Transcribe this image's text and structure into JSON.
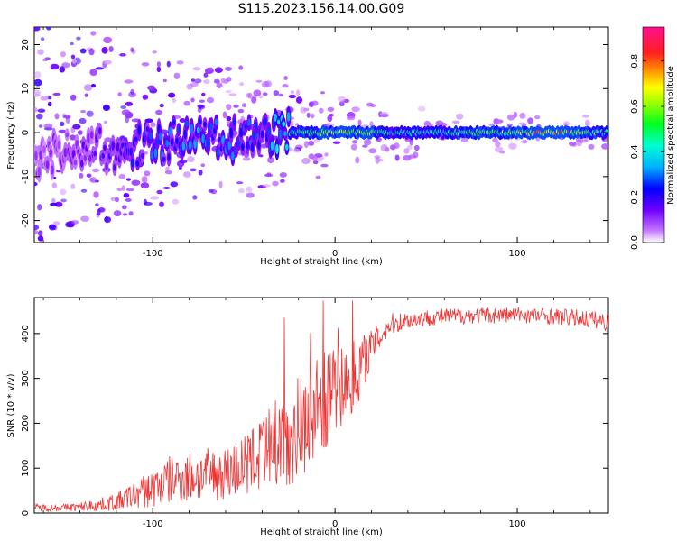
{
  "chart_data": [
    {
      "type": "heatmap",
      "title": "S115.2023.156.14.00.G09",
      "xlabel": "Height of straight line (km)",
      "ylabel": "Frequency (Hz)",
      "xlim": [
        -165,
        150
      ],
      "ylim": [
        -25,
        24
      ],
      "xticks": [
        -100,
        0,
        100
      ],
      "yticks": [
        -20,
        -10,
        0,
        10,
        20
      ],
      "colorbar": {
        "label": "Normalized spectral amplitude",
        "range": [
          0,
          0.95
        ],
        "ticks": [
          0.0,
          0.2,
          0.4,
          0.6,
          0.8
        ],
        "colors": [
          "#ffffff",
          "#a030ff",
          "#0000ff",
          "#00e0ff",
          "#00ff40",
          "#ffff00",
          "#ff2020",
          "#ff1090"
        ]
      },
      "ridge": {
        "x": [
          -165,
          -140,
          -120,
          -100,
          -80,
          -60,
          -40,
          -25,
          -10,
          0,
          10,
          30,
          60,
          90,
          120,
          150
        ],
        "frequency": [
          -6,
          -3,
          -4,
          -3,
          0,
          -2,
          0,
          0,
          0,
          0,
          0,
          0,
          0,
          0,
          0,
          0
        ],
        "amplitude": [
          0.1,
          0.15,
          0.2,
          0.28,
          0.33,
          0.3,
          0.3,
          0.45,
          0.6,
          0.62,
          0.7,
          0.45,
          0.5,
          0.62,
          0.88,
          0.52
        ]
      }
    },
    {
      "type": "line",
      "title": "",
      "xlabel": "Height of straight line (km)",
      "ylabel": "SNR (10 * v/v)",
      "xlim": [
        -165,
        150
      ],
      "ylim": [
        0,
        480
      ],
      "xticks": [
        -100,
        0,
        100
      ],
      "yticks": [
        0,
        100,
        200,
        300,
        400
      ],
      "series": [
        {
          "color": "#ee3333",
          "x": [
            -165,
            -150,
            -140,
            -130,
            -120,
            -110,
            -100,
            -90,
            -80,
            -70,
            -60,
            -50,
            -40,
            -30,
            -20,
            -10,
            0,
            10,
            20,
            30,
            40,
            60,
            80,
            100,
            120,
            140,
            150
          ],
          "y": [
            12,
            12,
            14,
            18,
            25,
            40,
            55,
            75,
            80,
            85,
            90,
            105,
            120,
            160,
            190,
            235,
            270,
            300,
            370,
            420,
            430,
            438,
            440,
            442,
            438,
            432,
            425
          ],
          "spread": [
            8,
            8,
            10,
            14,
            20,
            30,
            45,
            55,
            60,
            60,
            60,
            70,
            90,
            110,
            120,
            120,
            100,
            90,
            40,
            25,
            20,
            18,
            18,
            18,
            18,
            20,
            20
          ]
        }
      ]
    }
  ]
}
